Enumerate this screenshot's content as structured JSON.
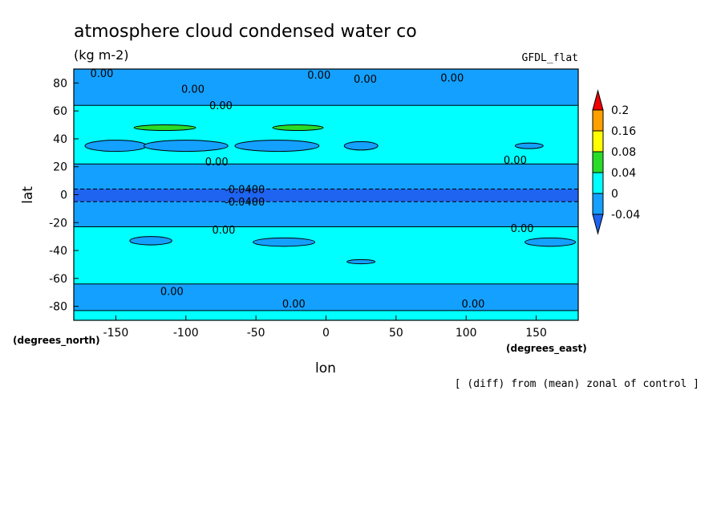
{
  "chart_data": {
    "type": "contour",
    "title": "atmosphere cloud condensed water co",
    "units": "(kg m-2)",
    "model_label": "GFDL_flat",
    "footnote": "[ (diff) from (mean) zonal of control ]",
    "xlabel": "lon",
    "ylabel": "lat",
    "x_units": "(degrees_east)",
    "y_units": "(degrees_north)",
    "xlim": [
      -180,
      180
    ],
    "ylim": [
      -90,
      90
    ],
    "xticks": [
      -150,
      -100,
      -50,
      0,
      50,
      100,
      150
    ],
    "yticks": [
      -80,
      -60,
      -40,
      -20,
      0,
      20,
      40,
      60,
      80
    ],
    "colorbar": {
      "levels": [
        -0.04,
        0,
        0.04,
        0.08,
        0.16,
        0.2
      ],
      "labels": [
        "0.2",
        "0.16",
        "0.08",
        "0.04",
        "0",
        "-0.04"
      ],
      "colors": {
        "below_min": "#1e64f0",
        "m004_0": "#14a0ff",
        "0_004": "#00ffff",
        "004_008": "#28dc28",
        "008_016": "#ffff00",
        "016_02": "#ffa000",
        "above_max": "#f00000"
      }
    },
    "zonal_bands": [
      {
        "lat_min": -90,
        "lat_max": -83,
        "level": "0_004"
      },
      {
        "lat_min": -83,
        "lat_max": -64,
        "level": "m004_0"
      },
      {
        "lat_min": -64,
        "lat_max": -23,
        "level": "0_004"
      },
      {
        "lat_min": -23,
        "lat_max": -5,
        "level": "m004_0"
      },
      {
        "lat_min": -5,
        "lat_max": 4,
        "level": "below_min"
      },
      {
        "lat_min": 4,
        "lat_max": 22,
        "level": "m004_0"
      },
      {
        "lat_min": 22,
        "lat_max": 64,
        "level": "0_004"
      },
      {
        "lat_min": 64,
        "lat_max": 90,
        "level": "m004_0"
      }
    ],
    "patches": [
      {
        "lon": -150,
        "lat": 35,
        "dlon": 22,
        "dlat": 4,
        "level": "m004_0"
      },
      {
        "lon": -100,
        "lat": 35,
        "dlon": 30,
        "dlat": 4,
        "level": "m004_0"
      },
      {
        "lon": -35,
        "lat": 35,
        "dlon": 30,
        "dlat": 4,
        "level": "m004_0"
      },
      {
        "lon": 25,
        "lat": 35,
        "dlon": 12,
        "dlat": 3,
        "level": "m004_0"
      },
      {
        "lon": 145,
        "lat": 35,
        "dlon": 10,
        "dlat": 2,
        "level": "m004_0"
      },
      {
        "lon": -115,
        "lat": 48,
        "dlon": 22,
        "dlat": 2,
        "level": "004_008"
      },
      {
        "lon": -20,
        "lat": 48,
        "dlon": 18,
        "dlat": 2,
        "level": "004_008"
      },
      {
        "lon": -125,
        "lat": -33,
        "dlon": 15,
        "dlat": 3,
        "level": "m004_0"
      },
      {
        "lon": -30,
        "lat": -34,
        "dlon": 22,
        "dlat": 3,
        "level": "m004_0"
      },
      {
        "lon": 25,
        "lat": -48,
        "dlon": 10,
        "dlat": 1.5,
        "level": "m004_0"
      },
      {
        "lon": 160,
        "lat": -34,
        "dlon": 18,
        "dlat": 3,
        "level": "m004_0"
      }
    ],
    "contour_labels": [
      {
        "text": "0.00",
        "lon": -160,
        "lat": 87
      },
      {
        "text": "0.00",
        "lon": -95,
        "lat": 76
      },
      {
        "text": "0.00",
        "lon": -75,
        "lat": 64
      },
      {
        "text": "0.00",
        "lon": -5,
        "lat": 86
      },
      {
        "text": "0.00",
        "lon": 28,
        "lat": 83
      },
      {
        "text": "0.00",
        "lon": 90,
        "lat": 84
      },
      {
        "text": "0.00",
        "lon": -78,
        "lat": 24
      },
      {
        "text": "0.00",
        "lon": 135,
        "lat": 25
      },
      {
        "text": "-0.0400",
        "lon": -58,
        "lat": 4
      },
      {
        "text": "-0.0400",
        "lon": -58,
        "lat": -5
      },
      {
        "text": "0.00",
        "lon": -73,
        "lat": -25
      },
      {
        "text": "0.00",
        "lon": 140,
        "lat": -24
      },
      {
        "text": "0.00",
        "lon": -110,
        "lat": -69
      },
      {
        "text": "0.00",
        "lon": -23,
        "lat": -78
      },
      {
        "text": "0.00",
        "lon": 105,
        "lat": -78
      }
    ]
  }
}
